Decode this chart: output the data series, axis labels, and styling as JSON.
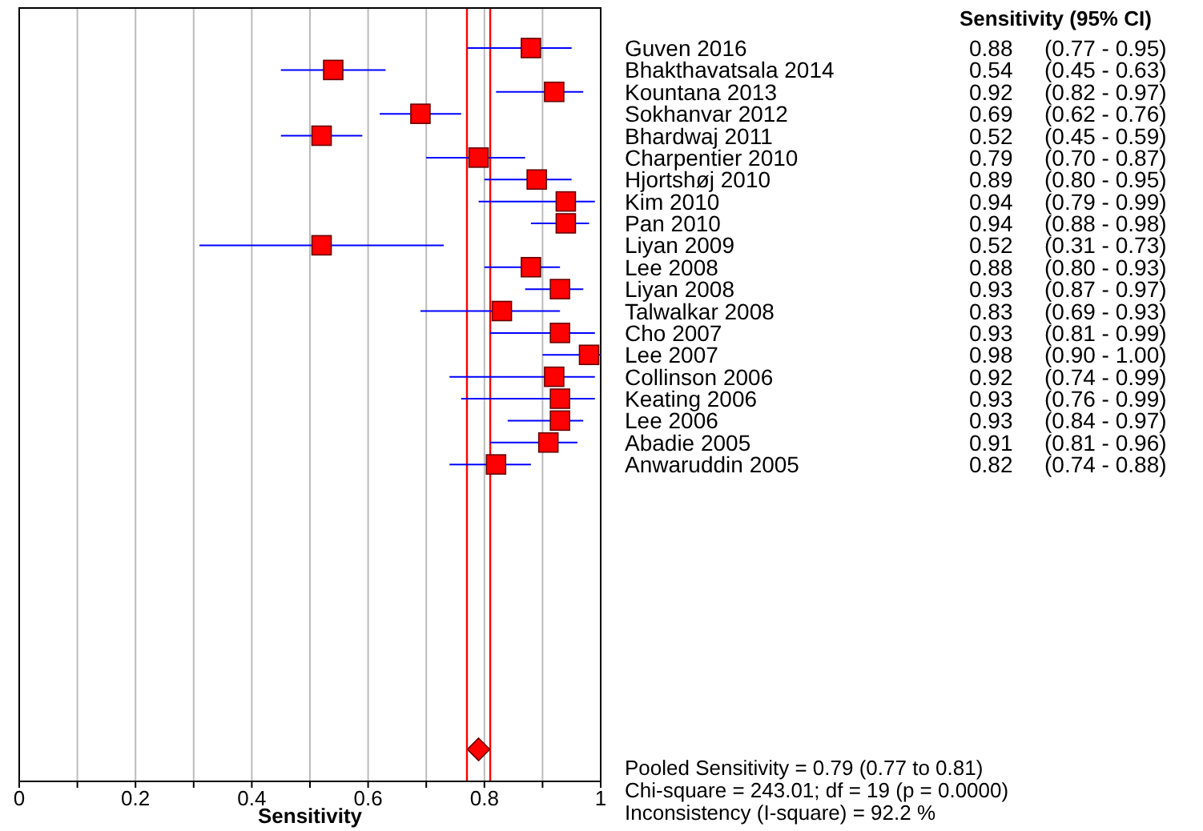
{
  "chart_data": {
    "type": "scatter",
    "orientation": "horizontal",
    "xlabel": "Sensitivity",
    "legend_title": "Sensitivity (95% CI)",
    "categories": [
      "Guven 2016",
      "Bhakthavatsala 2014",
      "Kountana 2013",
      "Sokhanvar 2012",
      "Bhardwaj 2011",
      "Charpentier 2010",
      "Hjortshøj 2010",
      "Kim 2010",
      "Pan 2010",
      "Liyan 2009",
      "Lee 2008",
      "Liyan 2008",
      "Talwalkar 2008",
      "Cho 2007",
      "Lee 2007",
      "Collinson 2006",
      "Keating 2006",
      "Lee 2006",
      "Abadie 2005",
      "Anwaruddin 2005",
      null,
      null,
      null,
      null,
      null,
      null,
      null,
      null,
      null,
      null,
      null,
      null,
      null
    ],
    "series": [
      {
        "color": "#ff0000",
        "marker": "square",
        "values": [
          0.88,
          0.54,
          0.92,
          0.69,
          0.52,
          0.79,
          0.89,
          0.94,
          0.94,
          0.52,
          0.88,
          0.93,
          0.83,
          0.93,
          0.98,
          0.92,
          0.93,
          0.93,
          0.91,
          0.82,
          null,
          null,
          null,
          null,
          null,
          null,
          null,
          null,
          null,
          null,
          null,
          null,
          null
        ],
        "errors": [
          [
            0.77,
            0.95
          ],
          [
            0.45,
            0.63
          ],
          [
            0.82,
            0.97
          ],
          [
            0.62,
            0.76
          ],
          [
            0.45,
            0.59
          ],
          [
            0.7,
            0.87
          ],
          [
            0.8,
            0.95
          ],
          [
            0.79,
            0.99
          ],
          [
            0.88,
            0.98
          ],
          [
            0.31,
            0.73
          ],
          [
            0.8,
            0.93
          ],
          [
            0.87,
            0.97
          ],
          [
            0.69,
            0.93
          ],
          [
            0.81,
            0.99
          ],
          [
            0.9,
            1.0
          ],
          [
            0.74,
            0.99
          ],
          [
            0.76,
            0.99
          ],
          [
            0.84,
            0.97
          ],
          [
            0.81,
            0.96
          ],
          [
            0.74,
            0.88
          ],
          null,
          null,
          null,
          null,
          null,
          null,
          null,
          null,
          null,
          null,
          null,
          null,
          null
        ],
        "value_labels": [
          "0.88 (0.77 - 0.95)",
          "0.54 (0.45 - 0.63)",
          "0.92 (0.82 - 0.97)",
          "0.69 (0.62 - 0.76)",
          "0.52 (0.45 - 0.59)",
          "0.79 (0.70 - 0.87)",
          "0.89 (0.80 - 0.95)",
          "0.94 (0.79 - 0.99)",
          "0.94 (0.88 - 0.98)",
          "0.52 (0.31 - 0.73)",
          "0.88 (0.80 - 0.93)",
          "0.93 (0.87 - 0.97)",
          "0.83 (0.69 - 0.93)",
          "0.93 (0.81 - 0.99)",
          "0.98 (0.90 - 1.00)",
          "0.92 (0.74 - 0.99)",
          "0.93 (0.76 - 0.99)",
          "0.93 (0.84 - 0.97)",
          "0.91 (0.81 - 0.96)",
          "0.82 (0.74 - 0.88)",
          null,
          null,
          null,
          null,
          null,
          null,
          null,
          null,
          null,
          null,
          null,
          null,
          null
        ]
      },
      {
        "color": "#ff0000",
        "marker": "diamond",
        "values": [
          null,
          null,
          null,
          null,
          null,
          null,
          null,
          null,
          null,
          null,
          null,
          null,
          null,
          null,
          null,
          null,
          null,
          null,
          null,
          null,
          null,
          null,
          null,
          null,
          null,
          null,
          null,
          null,
          null,
          null,
          null,
          null,
          0.79
        ]
      }
    ],
    "ref_lines": [
      {
        "axis": "x",
        "value": 0.77,
        "color": "#ff0000"
      },
      {
        "axis": "x",
        "value": 0.81,
        "color": "#ff0000"
      }
    ],
    "xlim": [
      0,
      1
    ],
    "xticks": [
      0,
      {
        "value": 0.1,
        "label": null
      },
      0.2,
      {
        "value": 0.3,
        "label": null
      },
      0.4,
      {
        "value": 0.5,
        "label": null
      },
      0.6,
      {
        "value": 0.7,
        "label": null
      },
      0.8,
      {
        "value": 0.9,
        "label": null
      },
      1
    ],
    "grid": "x",
    "annotations": [
      "Pooled Sensitivity = 0.79 (0.77 to 0.81)",
      "Chi-square = 243.01; df =  19 (p = 0.0000)",
      "Inconsistency (I-square) = 92.2 %"
    ]
  }
}
